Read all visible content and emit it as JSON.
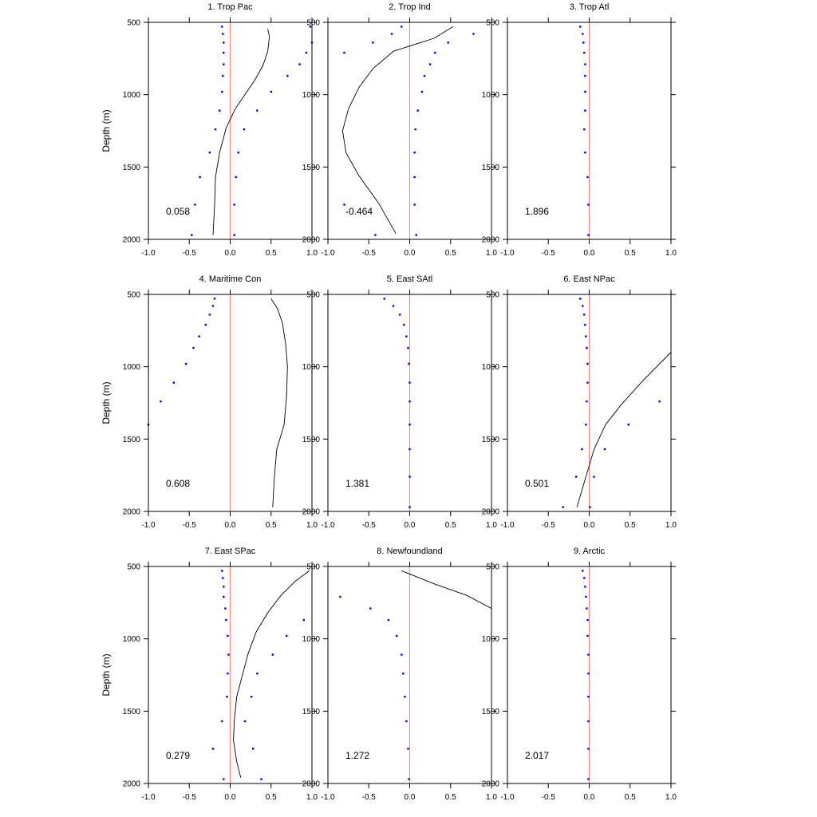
{
  "chart_data": {
    "type": "scatter",
    "ylabel": "Depth (m)",
    "xlim": [
      -1.0,
      1.0
    ],
    "ylim": [
      500,
      2000
    ],
    "y_inverted": true,
    "xticks": [
      -1.0,
      -0.5,
      0.0,
      0.5,
      1.0
    ],
    "xtick_labels": [
      "-1.0",
      "-0.5",
      "0.0",
      "0.5",
      "1.0"
    ],
    "yticks": [
      500,
      1000,
      1500,
      2000
    ],
    "ytick_labels": [
      "500",
      "1000",
      "1500",
      "2000"
    ],
    "reference_line": {
      "x": 0.0,
      "color": "#ff8a8a"
    },
    "colors": {
      "points": "#0000dd",
      "line": "#000000",
      "axis": "#000000"
    },
    "panels": [
      {
        "title": "1. Trop Pac",
        "value_label": "0.058",
        "points_a": [
          [
            -0.1,
            530
          ],
          [
            -0.09,
            580
          ],
          [
            -0.08,
            640
          ],
          [
            -0.08,
            710
          ],
          [
            -0.08,
            790
          ],
          [
            -0.09,
            870
          ],
          [
            -0.1,
            980
          ],
          [
            -0.13,
            1110
          ],
          [
            -0.18,
            1240
          ],
          [
            -0.25,
            1400
          ],
          [
            -0.37,
            1570
          ],
          [
            -0.43,
            1760
          ],
          [
            -0.47,
            1970
          ]
        ],
        "points_b": [
          [
            0.98,
            530
          ],
          [
            1.0,
            640
          ],
          [
            0.93,
            710
          ],
          [
            0.85,
            790
          ],
          [
            0.7,
            870
          ],
          [
            0.5,
            980
          ],
          [
            0.33,
            1110
          ],
          [
            0.17,
            1240
          ],
          [
            0.1,
            1400
          ],
          [
            0.07,
            1570
          ],
          [
            0.05,
            1760
          ],
          [
            0.05,
            1970
          ]
        ],
        "curve": [
          [
            0.46,
            545
          ],
          [
            0.48,
            600
          ],
          [
            0.46,
            700
          ],
          [
            0.4,
            800
          ],
          [
            0.3,
            900
          ],
          [
            0.18,
            1000
          ],
          [
            0.06,
            1100
          ],
          [
            -0.05,
            1230
          ],
          [
            -0.13,
            1400
          ],
          [
            -0.18,
            1570
          ],
          [
            -0.19,
            1760
          ],
          [
            -0.21,
            1970
          ]
        ]
      },
      {
        "title": "2. Trop Ind",
        "value_label": "-0.464",
        "points_a": [
          [
            -0.1,
            530
          ],
          [
            -0.22,
            580
          ],
          [
            -0.45,
            640
          ],
          [
            -0.8,
            710
          ],
          [
            -0.8,
            1760
          ],
          [
            -0.42,
            1970
          ]
        ],
        "points_b": [
          [
            0.78,
            580
          ],
          [
            0.47,
            640
          ],
          [
            0.31,
            710
          ],
          [
            0.25,
            790
          ],
          [
            0.18,
            870
          ],
          [
            0.15,
            980
          ],
          [
            0.1,
            1110
          ],
          [
            0.07,
            1240
          ],
          [
            0.06,
            1400
          ],
          [
            0.06,
            1570
          ],
          [
            0.06,
            1760
          ],
          [
            0.08,
            1970
          ]
        ],
        "curve": [
          [
            0.53,
            530
          ],
          [
            0.3,
            610
          ],
          [
            -0.2,
            700
          ],
          [
            -0.45,
            820
          ],
          [
            -0.62,
            950
          ],
          [
            -0.75,
            1100
          ],
          [
            -0.82,
            1250
          ],
          [
            -0.78,
            1400
          ],
          [
            -0.62,
            1560
          ],
          [
            -0.38,
            1750
          ],
          [
            -0.17,
            1960
          ]
        ]
      },
      {
        "title": "3. Trop Atl",
        "value_label": "1.896",
        "points_a": [
          [
            -0.11,
            530
          ],
          [
            -0.08,
            580
          ],
          [
            -0.07,
            640
          ],
          [
            -0.06,
            710
          ],
          [
            -0.05,
            790
          ],
          [
            -0.05,
            870
          ],
          [
            -0.05,
            980
          ],
          [
            -0.05,
            1110
          ],
          [
            -0.06,
            1240
          ],
          [
            -0.05,
            1400
          ],
          [
            -0.02,
            1570
          ],
          [
            -0.01,
            1760
          ],
          [
            -0.01,
            1970
          ]
        ],
        "points_b": [],
        "curve": []
      },
      {
        "title": "4. Maritime Con",
        "value_label": "0.608",
        "points_a": [
          [
            -0.19,
            530
          ],
          [
            -0.21,
            580
          ],
          [
            -0.25,
            640
          ],
          [
            -0.3,
            710
          ],
          [
            -0.38,
            790
          ],
          [
            -0.45,
            870
          ],
          [
            -0.54,
            980
          ],
          [
            -0.69,
            1110
          ],
          [
            -0.85,
            1240
          ],
          [
            -1.0,
            1400
          ]
        ],
        "points_b": [],
        "curve": [
          [
            0.5,
            530
          ],
          [
            0.58,
            600
          ],
          [
            0.64,
            700
          ],
          [
            0.68,
            850
          ],
          [
            0.7,
            1000
          ],
          [
            0.69,
            1200
          ],
          [
            0.66,
            1400
          ],
          [
            0.57,
            1570
          ],
          [
            0.54,
            1760
          ],
          [
            0.52,
            1970
          ]
        ]
      },
      {
        "title": "5. East SAtl",
        "value_label": "1.381",
        "points_a": [
          [
            -0.31,
            530
          ],
          [
            -0.2,
            580
          ],
          [
            -0.12,
            640
          ],
          [
            -0.07,
            710
          ],
          [
            -0.04,
            790
          ],
          [
            -0.02,
            870
          ],
          [
            -0.01,
            980
          ],
          [
            0.0,
            1110
          ],
          [
            0.0,
            1240
          ],
          [
            0.0,
            1400
          ],
          [
            0.0,
            1570
          ],
          [
            0.0,
            1760
          ],
          [
            0.0,
            1970
          ]
        ],
        "points_b": [],
        "curve": []
      },
      {
        "title": "6. East NPac",
        "value_label": "0.501",
        "points_a": [
          [
            -0.11,
            530
          ],
          [
            -0.08,
            580
          ],
          [
            -0.06,
            640
          ],
          [
            -0.05,
            710
          ],
          [
            -0.04,
            790
          ],
          [
            -0.03,
            870
          ],
          [
            -0.02,
            980
          ],
          [
            -0.02,
            1110
          ],
          [
            -0.03,
            1240
          ],
          [
            -0.04,
            1400
          ],
          [
            -0.09,
            1570
          ],
          [
            -0.16,
            1760
          ],
          [
            -0.32,
            1970
          ]
        ],
        "points_b": [
          [
            0.86,
            1240
          ],
          [
            0.48,
            1400
          ],
          [
            0.19,
            1570
          ],
          [
            0.06,
            1760
          ],
          [
            0.01,
            1970
          ]
        ],
        "curve": [
          [
            1.0,
            900
          ],
          [
            0.65,
            1100
          ],
          [
            0.38,
            1270
          ],
          [
            0.2,
            1400
          ],
          [
            0.06,
            1570
          ],
          [
            -0.04,
            1760
          ],
          [
            -0.15,
            1970
          ]
        ]
      },
      {
        "title": "7. East SPac",
        "value_label": "0.279",
        "points_a": [
          [
            -0.1,
            530
          ],
          [
            -0.09,
            580
          ],
          [
            -0.08,
            640
          ],
          [
            -0.08,
            710
          ],
          [
            -0.06,
            790
          ],
          [
            -0.05,
            870
          ],
          [
            -0.03,
            980
          ],
          [
            -0.02,
            1110
          ],
          [
            -0.03,
            1240
          ],
          [
            -0.04,
            1400
          ],
          [
            -0.1,
            1570
          ],
          [
            -0.21,
            1760
          ],
          [
            -0.08,
            1970
          ]
        ],
        "points_b": [
          [
            0.9,
            870
          ],
          [
            0.69,
            980
          ],
          [
            0.52,
            1110
          ],
          [
            0.33,
            1240
          ],
          [
            0.26,
            1400
          ],
          [
            0.18,
            1570
          ],
          [
            0.28,
            1760
          ],
          [
            0.38,
            1970
          ]
        ],
        "curve": [
          [
            0.97,
            530
          ],
          [
            0.8,
            600
          ],
          [
            0.62,
            700
          ],
          [
            0.46,
            820
          ],
          [
            0.32,
            950
          ],
          [
            0.22,
            1100
          ],
          [
            0.14,
            1270
          ],
          [
            0.08,
            1400
          ],
          [
            0.05,
            1570
          ],
          [
            0.04,
            1700
          ],
          [
            0.08,
            1850
          ],
          [
            0.13,
            1960
          ]
        ]
      },
      {
        "title": "8. Newfoundland",
        "value_label": "1.272",
        "points_a": [
          [
            -0.85,
            710
          ],
          [
            -0.48,
            790
          ],
          [
            -0.26,
            870
          ],
          [
            -0.16,
            980
          ],
          [
            -0.1,
            1110
          ],
          [
            -0.08,
            1240
          ],
          [
            -0.06,
            1400
          ],
          [
            -0.04,
            1570
          ],
          [
            -0.02,
            1760
          ],
          [
            -0.01,
            1970
          ]
        ],
        "points_b": [],
        "curve": [
          [
            -0.1,
            530
          ],
          [
            0.3,
            620
          ],
          [
            0.7,
            700
          ],
          [
            1.0,
            790
          ]
        ]
      },
      {
        "title": "9. Arctic",
        "value_label": "2.017",
        "points_a": [
          [
            -0.08,
            530
          ],
          [
            -0.06,
            580
          ],
          [
            -0.05,
            640
          ],
          [
            -0.04,
            710
          ],
          [
            -0.03,
            790
          ],
          [
            -0.02,
            870
          ],
          [
            -0.02,
            980
          ],
          [
            -0.01,
            1110
          ],
          [
            -0.01,
            1240
          ],
          [
            -0.01,
            1400
          ],
          [
            -0.01,
            1570
          ],
          [
            -0.01,
            1760
          ],
          [
            -0.01,
            1970
          ]
        ],
        "points_b": [],
        "curve": []
      }
    ]
  }
}
